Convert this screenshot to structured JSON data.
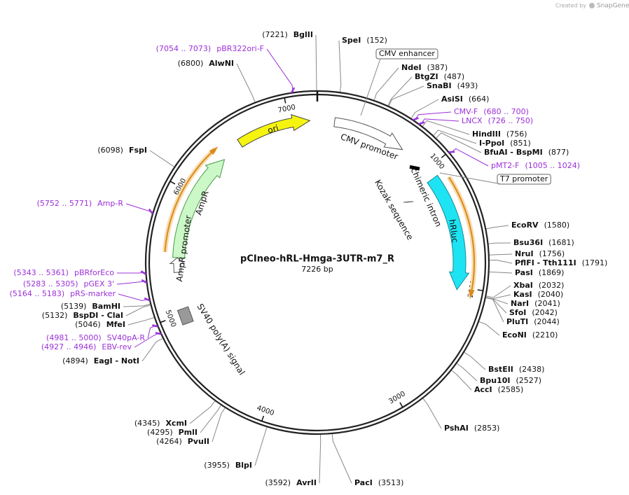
{
  "header": {
    "credit": "Created by",
    "brand": "SnapGene"
  },
  "plasmid": {
    "name": "pCIneo-hRL-Hmga-3UTR-m7_R",
    "size": "7226 bp",
    "ruler": [
      1000,
      2000,
      3000,
      4000,
      5000,
      6000,
      7000
    ]
  },
  "sites": [
    {
      "name": "BglII",
      "position": "(7221)"
    },
    {
      "name": "AlwNI",
      "position": "(6800)"
    },
    {
      "name": "FspI",
      "position": "(6098)"
    },
    {
      "name": "BamHI",
      "position": "(5139)"
    },
    {
      "name": "BspDI  - ClaI",
      "position": "(5132)"
    },
    {
      "name": "MfeI",
      "position": "(5046)"
    },
    {
      "name": "EagI  - NotI",
      "position": "(4894)"
    },
    {
      "name": "XcmI",
      "position": "(4345)"
    },
    {
      "name": "PmlI",
      "position": "(4295)"
    },
    {
      "name": "PvuII",
      "position": "(4264)"
    },
    {
      "name": "BlpI",
      "position": "(3955)"
    },
    {
      "name": "AvrII",
      "position": "(3592)"
    },
    {
      "name": "PacI",
      "position": "(3513)"
    },
    {
      "name": "PshAI",
      "position": "(2853)"
    },
    {
      "name": "AccI",
      "position": "(2585)"
    },
    {
      "name": "Bpu10I",
      "position": "(2527)"
    },
    {
      "name": "BstEII",
      "position": "(2438)"
    },
    {
      "name": "EcoNI",
      "position": "(2210)"
    },
    {
      "name": "PluTI",
      "position": "(2044)"
    },
    {
      "name": "SfoI",
      "position": "(2042)"
    },
    {
      "name": "NarI",
      "position": "(2041)"
    },
    {
      "name": "KasI",
      "position": "(2040)"
    },
    {
      "name": "XbaI",
      "position": "(2032)"
    },
    {
      "name": "PasI",
      "position": "(1869)"
    },
    {
      "name": "PflFI  - Tth111I",
      "position": "(1791)"
    },
    {
      "name": "NruI",
      "position": "(1756)"
    },
    {
      "name": "Bsu36I",
      "position": "(1681)"
    },
    {
      "name": "EcoRV",
      "position": "(1580)"
    },
    {
      "name": "BfuAI  - BspMI",
      "position": "(877)"
    },
    {
      "name": "I-PpoI",
      "position": "(851)"
    },
    {
      "name": "HindIII",
      "position": "(756)"
    },
    {
      "name": "AsiSI",
      "position": "(664)"
    },
    {
      "name": "SnaBI",
      "position": "(493)"
    },
    {
      "name": "BtgZI",
      "position": "(487)"
    },
    {
      "name": "NdeI",
      "position": "(387)"
    },
    {
      "name": "SpeI",
      "position": "(152)"
    }
  ],
  "primers": [
    {
      "name": "pBR322ori-F",
      "range": "(7054 .. 7073)"
    },
    {
      "name": "Amp-R",
      "range": "(5752 .. 5771)"
    },
    {
      "name": "pBRforEco",
      "range": "(5343 .. 5361)"
    },
    {
      "name": "pGEX 3'",
      "range": "(5283 .. 5305)"
    },
    {
      "name": "pRS-marker",
      "range": "(5164 .. 5183)"
    },
    {
      "name": "SV40pA-R",
      "range": "(4981 .. 5000)"
    },
    {
      "name": "EBV-rev",
      "range": "(4927 .. 4946)"
    },
    {
      "name": "CMV-F",
      "range": "(680 .. 700)"
    },
    {
      "name": "LNCX",
      "range": "(726 .. 750)"
    },
    {
      "name": "pMT2-F",
      "range": "(1005 .. 1024)"
    }
  ],
  "features": [
    {
      "label": "ori"
    },
    {
      "label": "CMV promoter"
    },
    {
      "label": "chimeric intron"
    },
    {
      "label": "Kozak sequence"
    },
    {
      "label": "hRluc"
    },
    {
      "label": "AmpR"
    },
    {
      "label": "AmpR promoter"
    },
    {
      "label": "SV40 poly(A) signal"
    }
  ],
  "boxed": [
    {
      "label": "CMV enhancer"
    },
    {
      "label": "T7 promoter"
    }
  ]
}
